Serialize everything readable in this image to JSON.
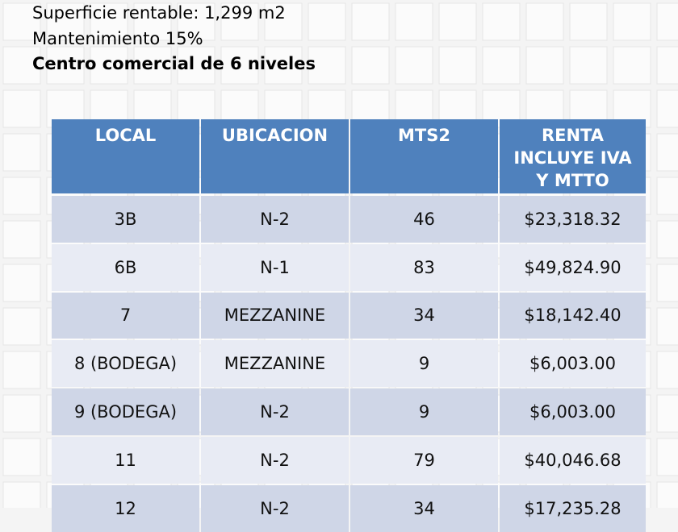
{
  "header": {
    "lines": [
      "Superficie rentable: 1,299 m2",
      "Mantenimiento 15%",
      "Centro comercial de 6 niveles"
    ]
  },
  "table": {
    "columns": [
      "LOCAL",
      "UBICACION",
      "MTS2",
      "RENTA INCLUYE IVA Y MTTO"
    ],
    "rows": [
      [
        "3B",
        "N-2",
        "46",
        "$23,318.32"
      ],
      [
        "6B",
        "N-1",
        "83",
        "$49,824.90"
      ],
      [
        "7",
        "MEZZANINE",
        "34",
        "$18,142.40"
      ],
      [
        "8 (BODEGA)",
        "MEZZANINE",
        "9",
        "$6,003.00"
      ],
      [
        "9 (BODEGA)",
        "N-2",
        "9",
        "$6,003.00"
      ],
      [
        "11",
        "N-2",
        "79",
        "$40,046.68"
      ],
      [
        "12",
        "N-2",
        "34",
        "$17,235.28"
      ]
    ]
  }
}
